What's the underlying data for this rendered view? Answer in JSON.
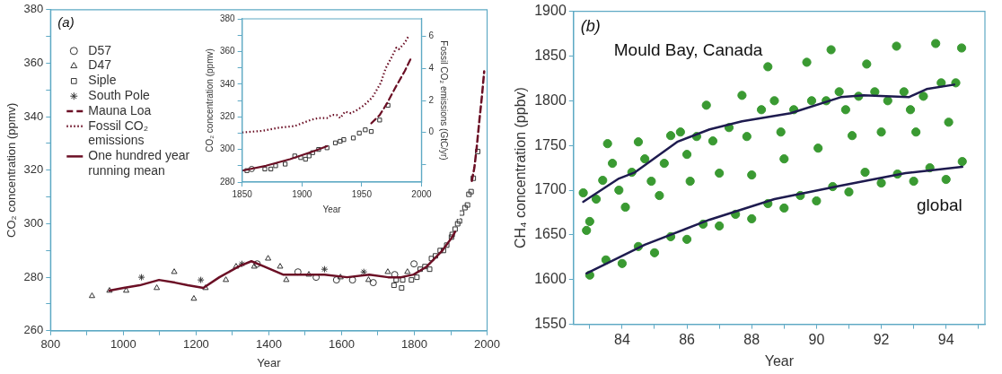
{
  "chart_data": [
    {
      "type": "scatter",
      "xlabel": "Year",
      "ylabel": "CO₂ concentration (ppmv)",
      "annotations": [
        "(a)"
      ],
      "xlim": [
        800,
        2000
      ],
      "ylim": [
        260,
        380
      ],
      "xticks": [
        800,
        {
          "value": 900,
          "label": null
        },
        1000,
        {
          "value": 1100,
          "label": null
        },
        1200,
        {
          "value": 1300,
          "label": null
        },
        1400,
        {
          "value": 1500,
          "label": null
        },
        1600,
        {
          "value": 1700,
          "label": null
        },
        1800,
        {
          "value": 1900,
          "label": null
        },
        2000
      ],
      "yticks": [
        260,
        {
          "value": 270,
          "label": null
        },
        280,
        {
          "value": 290,
          "label": null
        },
        300,
        {
          "value": 310,
          "label": null
        },
        320,
        {
          "value": 330,
          "label": null
        },
        340,
        {
          "value": 350,
          "label": null
        },
        360,
        {
          "value": 370,
          "label": null
        },
        380
      ],
      "legend": "top left",
      "series": [
        {
          "name": "D57",
          "marker": "circle",
          "color": "#333333",
          "x": [
            1368,
            1480,
            1530,
            1586,
            1630,
            1687,
            1746,
            1799
          ],
          "values": [
            285,
            282,
            280,
            279,
            279,
            278,
            281,
            285
          ]
        },
        {
          "name": "D47",
          "marker": "triangle",
          "color": "#333333",
          "x": [
            914,
            962,
            1008,
            1092,
            1140,
            1194,
            1226,
            1282,
            1310,
            1360,
            1398,
            1431,
            1448,
            1510,
            1597,
            1674,
            1727,
            1781
          ],
          "values": [
            273,
            275,
            275,
            276,
            282,
            272,
            276,
            279,
            284,
            284,
            287,
            284,
            279,
            281,
            280,
            279,
            282,
            282
          ]
        },
        {
          "name": "Siple",
          "marker": "square",
          "color": "#333333",
          "x": [
            1744,
            1750,
            1765,
            1768,
            1792,
            1807,
            1816,
            1829,
            1842,
            1847,
            1858,
            1871,
            1880,
            1889,
            1902,
            1904,
            1912,
            1919,
            1924,
            1930,
            1939,
            1946,
            1950,
            1956,
            1962,
            1974
          ],
          "values": [
            277,
            279,
            276,
            279,
            279,
            280,
            283,
            284,
            283,
            287,
            288,
            290,
            290,
            292,
            295,
            296,
            298,
            300,
            301,
            304,
            306,
            307,
            311,
            312,
            317,
            327
          ]
        },
        {
          "name": "South Pole",
          "marker": "cross",
          "color": "#333333",
          "x": [
            1050,
            1213,
            1326,
            1553,
            1661
          ],
          "values": [
            280,
            279,
            285,
            283,
            282
          ]
        },
        {
          "name": "Mauna Loa",
          "type": "line",
          "line_style": "dashed",
          "color": "#6b0f25",
          "x": [
            1958,
            1965,
            1971,
            1979,
            1986,
            1992
          ],
          "values": [
            316,
            321,
            328,
            339,
            348,
            357
          ]
        },
        {
          "name": "One hundred year running mean",
          "type": "line",
          "line_style": "solid",
          "color": "#6b0f25",
          "x": [
            962,
            1001,
            1045,
            1098,
            1142,
            1177,
            1220,
            1264,
            1317,
            1352,
            1387,
            1439,
            1483,
            1553,
            1615,
            1676,
            1728,
            1763,
            1798,
            1834,
            1877,
            1904,
            1912
          ],
          "values": [
            275,
            276,
            277,
            279,
            278,
            277,
            276,
            280,
            284,
            286,
            284,
            281,
            281,
            281,
            280,
            281,
            280,
            280,
            281,
            284,
            290,
            295,
            297
          ]
        }
      ]
    },
    {
      "type": "scatter",
      "xlabel": "Year",
      "ylabel": "CO₂ concentration (ppmv)",
      "y2label": "Fossil CO₂ emissions (GtC/yr)",
      "xlim": [
        1850,
        2000
      ],
      "ylim": [
        280,
        380
      ],
      "y2lim": [
        -3.1,
        7.1
      ],
      "xticks": [
        1850,
        1900,
        1950,
        2000
      ],
      "yticks": [
        280,
        {
          "value": 290,
          "label": null
        },
        300,
        {
          "value": 310,
          "label": null
        },
        320,
        {
          "value": 330,
          "label": null
        },
        340,
        {
          "value": 350,
          "label": null
        },
        360,
        {
          "value": 370,
          "label": null
        },
        380
      ],
      "y2ticks": [
        {
          "value": -2,
          "label": null
        },
        0,
        2,
        4,
        6
      ],
      "series": [
        {
          "marker": "circle",
          "color": "#333333",
          "x": [
            1858
          ],
          "values": [
            288
          ]
        },
        {
          "marker": "square",
          "color": "#333333",
          "x": [
            1854,
            1869,
            1874,
            1878,
            1886,
            1894,
            1899,
            1903,
            1906,
            1909,
            1914,
            1921,
            1928,
            1932,
            1935,
            1943,
            1948,
            1953,
            1958,
            1965,
            1972
          ],
          "values": [
            287,
            288,
            288,
            290,
            291,
            296,
            295,
            294,
            296,
            298,
            300,
            301,
            304,
            305,
            306,
            307,
            310,
            312,
            311,
            318,
            327
          ]
        },
        {
          "name": "Mauna Loa",
          "type": "line",
          "line_style": "dashed",
          "color": "#6b0f25",
          "x": [
            1958,
            1965,
            1971,
            1979,
            1986,
            1992
          ],
          "values": [
            316,
            321,
            328,
            339,
            348,
            357
          ]
        },
        {
          "name": "Fossil CO₂ emissions",
          "type": "line",
          "line_style": "dotted",
          "axis": "y2",
          "color": "#6b0f25",
          "x": [
            1850,
            1867,
            1881,
            1894,
            1908,
            1914,
            1921,
            1925,
            1929,
            1932,
            1936,
            1941,
            1946,
            1952,
            1959,
            1966,
            1970,
            1975,
            1979,
            1981,
            1986,
            1989
          ],
          "values": [
            0.0,
            0.1,
            0.3,
            0.4,
            0.8,
            0.9,
            0.9,
            1.1,
            1.1,
            0.9,
            1.3,
            1.2,
            1.4,
            1.7,
            2.2,
            3.1,
            4.0,
            4.7,
            5.3,
            5.2,
            5.6,
            6.0
          ]
        },
        {
          "name": "One hundred year running mean",
          "type": "line",
          "line_style": "solid",
          "color": "#6b0f25",
          "x": [
            1850,
            1870,
            1890,
            1910,
            1921
          ],
          "values": [
            287,
            290,
            294,
            299,
            302
          ]
        }
      ]
    },
    {
      "type": "scatter",
      "xlabel": "Year",
      "ylabel": "CH₄ concentration (ppbv)",
      "annotations": [
        "(b)"
      ],
      "xlim": [
        82.5,
        95.2
      ],
      "ylim": [
        1550,
        1900
      ],
      "xticks": [
        {
          "value": 83,
          "label": null
        },
        84,
        {
          "value": 85,
          "label": null
        },
        86,
        {
          "value": 87,
          "label": null
        },
        88,
        {
          "value": 89,
          "label": null
        },
        90,
        {
          "value": 91,
          "label": null
        },
        92,
        {
          "value": 93,
          "label": null
        },
        94,
        {
          "value": 95,
          "label": null
        }
      ],
      "yticks": [
        1550,
        1600,
        1650,
        1700,
        1750,
        1800,
        1850,
        1900
      ],
      "series": [
        {
          "name": "Mould Bay, Canada",
          "marker": "circle",
          "color": "#3a9a32",
          "x": [
            82.8,
            82.9,
            83.0,
            83.2,
            83.4,
            83.55,
            83.7,
            83.9,
            84.1,
            84.3,
            84.5,
            84.7,
            84.9,
            85.15,
            85.3,
            85.5,
            85.8,
            86.0,
            86.1,
            86.3,
            86.6,
            86.8,
            87.0,
            87.3,
            87.7,
            87.85,
            88.0,
            88.3,
            88.5,
            88.7,
            88.9,
            89.0,
            89.3,
            89.7,
            89.85,
            90.05,
            90.3,
            90.45,
            90.7,
            90.9,
            91.1,
            91.3,
            91.55,
            91.8,
            92.0,
            92.2,
            92.47,
            92.7,
            92.9,
            93.07,
            93.3,
            93.68,
            93.85,
            94.08,
            94.3,
            94.48
          ],
          "values": [
            1697,
            1655,
            1665,
            1690,
            1711,
            1752,
            1730,
            1700,
            1681,
            1720,
            1754,
            1735,
            1710,
            1694,
            1730,
            1761,
            1765,
            1740,
            1710,
            1760,
            1795,
            1755,
            1719,
            1770,
            1806,
            1760,
            1717,
            1790,
            1838,
            1800,
            1765,
            1735,
            1790,
            1843,
            1800,
            1747,
            1800,
            1857,
            1810,
            1790,
            1761,
            1805,
            1841,
            1810,
            1765,
            1800,
            1861,
            1810,
            1790,
            1765,
            1805,
            1864,
            1820,
            1776,
            1820,
            1859
          ]
        },
        {
          "name": "global",
          "marker": "circle",
          "color": "#3a9a32",
          "x": [
            83.0,
            83.5,
            84.0,
            84.5,
            85.0,
            85.5,
            86.0,
            86.5,
            87.0,
            87.5,
            88.0,
            88.5,
            89.0,
            89.5,
            90.0,
            90.5,
            91.0,
            91.5,
            92.0,
            92.5,
            93.0,
            93.5,
            94.0,
            94.5
          ],
          "values": [
            1605,
            1622,
            1618,
            1637,
            1630,
            1648,
            1645,
            1662,
            1660,
            1673,
            1668,
            1685,
            1680,
            1694,
            1688,
            1704,
            1698,
            1720,
            1708,
            1718,
            1710,
            1725,
            1712,
            1732
          ]
        },
        {
          "type": "line",
          "line_style": "solid",
          "color": "#1e1b4f",
          "x": [
            82.8,
            83.9,
            84.4,
            85.7,
            86.7,
            87.7,
            89.2,
            90.75,
            91.45,
            92.85,
            93.4,
            94.25
          ],
          "values": [
            1687,
            1713,
            1720,
            1754,
            1768,
            1777,
            1786,
            1804,
            1806,
            1804,
            1813,
            1818
          ]
        },
        {
          "type": "line",
          "line_style": "solid",
          "color": "#1e1b4f",
          "x": [
            82.9,
            84.7,
            86.7,
            88.7,
            90.75,
            91.75,
            92.75,
            94.5
          ],
          "values": [
            1607,
            1639,
            1667,
            1690,
            1705,
            1712,
            1719,
            1726
          ]
        }
      ]
    }
  ]
}
